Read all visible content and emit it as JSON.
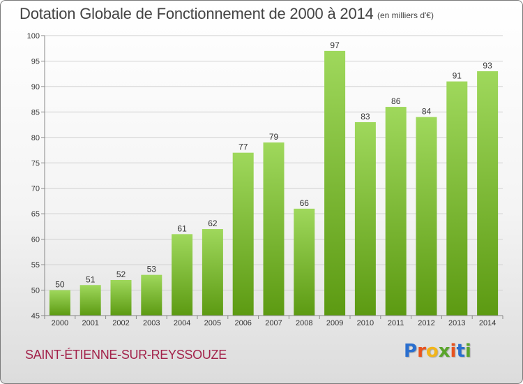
{
  "header": {
    "title": "Dotation Globale de Fonctionnement de 2000 à 2014",
    "unit": "(en milliers d'€)"
  },
  "footer": {
    "commune": "SAINT-ÉTIENNE-SUR-REYSSOUZE",
    "logo_letters": [
      "P",
      "r",
      "o",
      "x",
      "i",
      "t",
      "i"
    ],
    "logo_colors": [
      "#2a6fcf",
      "#e8531f",
      "#f2b51a",
      "#5aa52b",
      "#e8531f",
      "#2a6fcf",
      "#5aa52b"
    ]
  },
  "colors": {
    "bar_top": "#9fd85c",
    "bar_bottom": "#5c9a12",
    "grid": "#cfcfcf",
    "axis": "#888888"
  },
  "chart_data": {
    "type": "bar",
    "title": "Dotation Globale de Fonctionnement de 2000 à 2014",
    "subtitle": "(en milliers d'€)",
    "xlabel": "",
    "ylabel": "",
    "ylim": [
      45,
      100
    ],
    "yticks": [
      45,
      50,
      55,
      60,
      65,
      70,
      75,
      80,
      85,
      90,
      95,
      100
    ],
    "grid": true,
    "categories": [
      "2000",
      "2001",
      "2002",
      "2003",
      "2004",
      "2005",
      "2006",
      "2007",
      "2008",
      "2009",
      "2010",
      "2011",
      "2012",
      "2013",
      "2014"
    ],
    "values": [
      50,
      51,
      52,
      53,
      61,
      62,
      77,
      79,
      66,
      97,
      83,
      86,
      84,
      91,
      93
    ]
  }
}
